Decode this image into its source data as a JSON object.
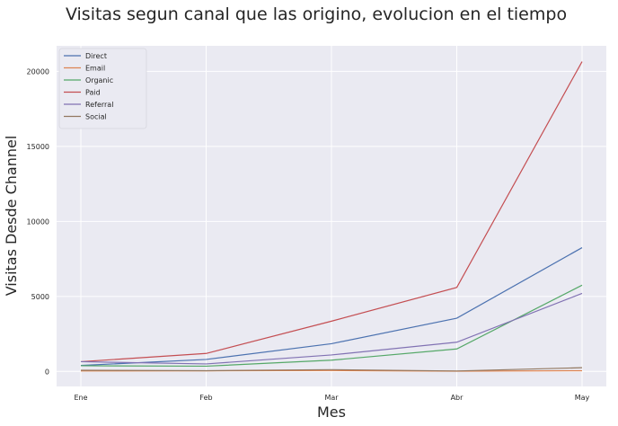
{
  "chart_data": {
    "type": "line",
    "title": "Visitas segun canal que las origino, evolucion en el tiempo",
    "xlabel": "Mes",
    "ylabel": "Visitas Desde Channel",
    "categories": [
      "Ene",
      "Feb",
      "Mar",
      "Abr",
      "May"
    ],
    "ylim": [
      -1000,
      21700
    ],
    "yticks": [
      0,
      5000,
      10000,
      15000,
      20000
    ],
    "grid": true,
    "legend_position": "top-left",
    "series": [
      {
        "name": "Direct",
        "color": "#4c72b0",
        "values": [
          400,
          800,
          1850,
          3550,
          8250
        ]
      },
      {
        "name": "Email",
        "color": "#dd8452",
        "values": [
          30,
          40,
          60,
          20,
          50
        ]
      },
      {
        "name": "Organic",
        "color": "#55a868",
        "values": [
          380,
          350,
          750,
          1500,
          5750
        ]
      },
      {
        "name": "Paid",
        "color": "#c44e52",
        "values": [
          650,
          1200,
          3350,
          5600,
          20650
        ]
      },
      {
        "name": "Referral",
        "color": "#8172b3",
        "values": [
          650,
          500,
          1100,
          1950,
          5200
        ]
      },
      {
        "name": "Social",
        "color": "#937860",
        "values": [
          80,
          50,
          120,
          30,
          250
        ]
      }
    ]
  }
}
